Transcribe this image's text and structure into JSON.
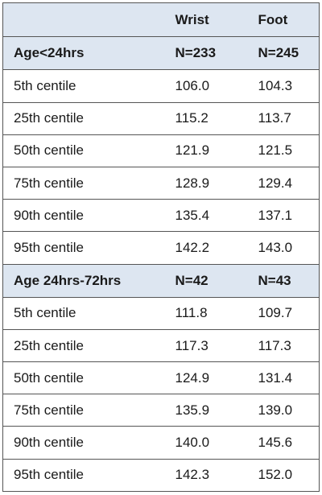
{
  "table": {
    "columns": [
      "",
      "Wrist",
      "Foot"
    ],
    "groups": [
      {
        "label": "Age<24hrs",
        "wrist_n": "N=233",
        "foot_n": "N=245",
        "rows": [
          {
            "label": "5th centile",
            "wrist": "106.0",
            "foot": "104.3"
          },
          {
            "label": "25th centile",
            "wrist": "115.2",
            "foot": "113.7"
          },
          {
            "label": "50th centile",
            "wrist": "121.9",
            "foot": "121.5"
          },
          {
            "label": "75th centile",
            "wrist": "128.9",
            "foot": "129.4"
          },
          {
            "label": "90th centile",
            "wrist": "135.4",
            "foot": "137.1"
          },
          {
            "label": "95th centile",
            "wrist": "142.2",
            "foot": "143.0"
          }
        ]
      },
      {
        "label": "Age 24hrs-72hrs",
        "wrist_n": "N=42",
        "foot_n": "N=43",
        "rows": [
          {
            "label": "5th centile",
            "wrist": "111.8",
            "foot": "109.7"
          },
          {
            "label": "25th centile",
            "wrist": "117.3",
            "foot": "117.3"
          },
          {
            "label": "50th centile",
            "wrist": "124.9",
            "foot": "131.4"
          },
          {
            "label": "75th centile",
            "wrist": "135.9",
            "foot": "139.0"
          },
          {
            "label": "90th centile",
            "wrist": "140.0",
            "foot": "145.6"
          },
          {
            "label": "95th centile",
            "wrist": "142.3",
            "foot": "152.0"
          }
        ]
      }
    ]
  },
  "colors": {
    "header_bg": "#dde6f1",
    "border": "#555555",
    "text": "#1a1a1a"
  }
}
